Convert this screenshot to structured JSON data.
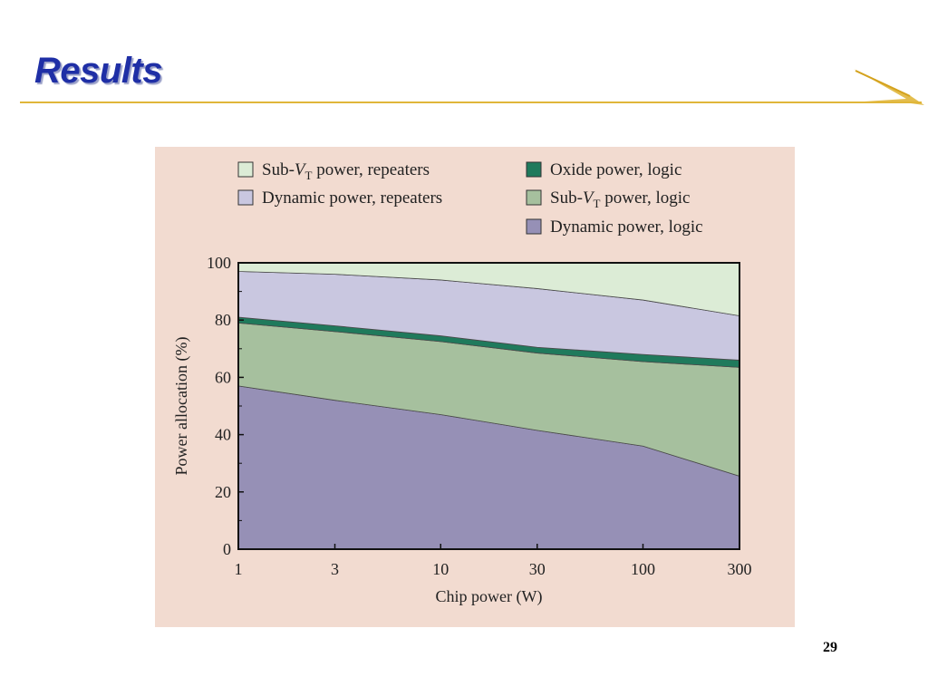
{
  "slide": {
    "title": "Results",
    "page_number": "29"
  },
  "chart_data": {
    "type": "area",
    "stacked": true,
    "x": [
      1,
      3,
      10,
      30,
      100,
      300
    ],
    "xlabel": "Chip power  (W)",
    "ylabel": "Power allocation  (%)",
    "x_ticks": [
      "1",
      "3",
      "10",
      "30",
      "100",
      "300"
    ],
    "y_ticks": [
      "0",
      "20",
      "40",
      "60",
      "80",
      "100"
    ],
    "xlim": [
      1,
      300
    ],
    "ylim": [
      0,
      100
    ],
    "x_scale": "log",
    "grid": false,
    "legend_position": "top",
    "series": [
      {
        "name": "Dynamic power, logic",
        "values": [
          57,
          52,
          47,
          41.5,
          36,
          25.5
        ],
        "color": "#9690b6"
      },
      {
        "name": "Sub-V_T power, logic",
        "values": [
          22,
          24,
          25.5,
          27,
          29.5,
          38
        ],
        "color": "#a6c09e"
      },
      {
        "name": "Oxide power, logic",
        "values": [
          2,
          2,
          2,
          2,
          2.5,
          2.5
        ],
        "color": "#1f7a5c"
      },
      {
        "name": "Dynamic power, repeaters",
        "values": [
          16,
          18,
          19.5,
          20.5,
          19,
          15.5
        ],
        "color": "#c9c7e0"
      },
      {
        "name": "Sub-V_T power, repeaters",
        "values": [
          3,
          4,
          6,
          9,
          13,
          18.5
        ],
        "color": "#dcecd6"
      }
    ],
    "legend": [
      {
        "series": "Sub-V_T power, repeaters",
        "prefix": "Sub-",
        "italic": "V",
        "sub": "T",
        "suffix": " power, repeaters",
        "color": "#dcecd6"
      },
      {
        "series": "Oxide power, logic",
        "prefix": "Oxide power, logic",
        "italic": "",
        "sub": "",
        "suffix": "",
        "color": "#1f7a5c"
      },
      {
        "series": "Dynamic power, repeaters",
        "prefix": "Dynamic power, repeaters",
        "italic": "",
        "sub": "",
        "suffix": "",
        "color": "#c9c7e0"
      },
      {
        "series": "Sub-V_T power, logic",
        "prefix": "Sub-",
        "italic": "V",
        "sub": "T",
        "suffix": " power, logic",
        "color": "#a6c09e"
      },
      {
        "series": "Dynamic power, logic",
        "prefix": "Dynamic power, logic",
        "italic": "",
        "sub": "",
        "suffix": "",
        "color": "#9690b6"
      }
    ]
  }
}
